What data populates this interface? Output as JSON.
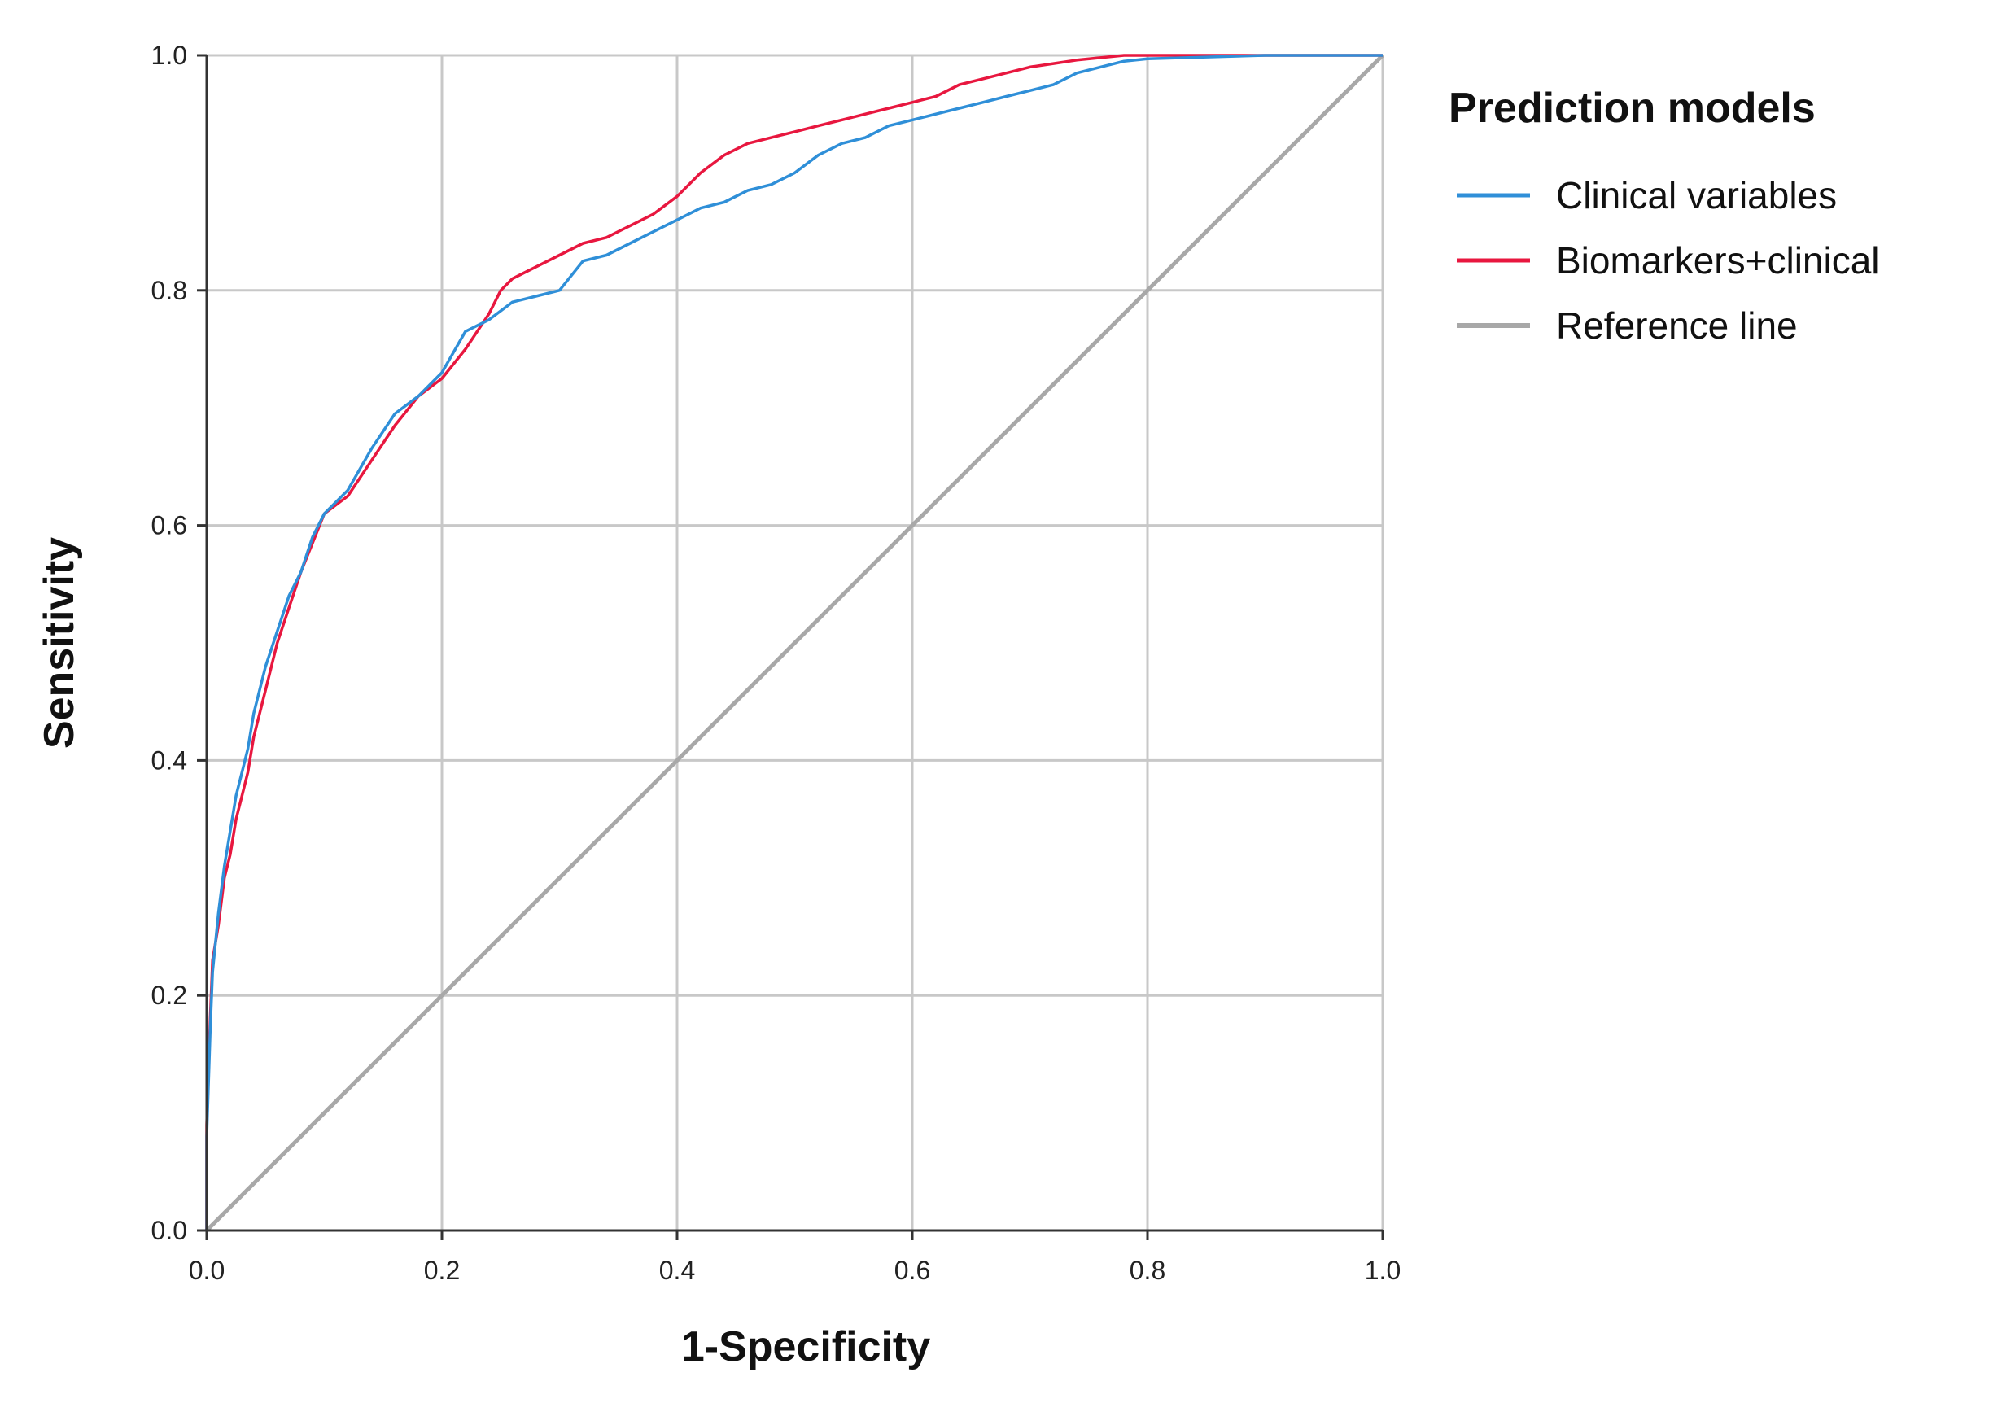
{
  "chart_data": {
    "type": "line",
    "xlabel": "1-Specificity",
    "ylabel": "Sensitivity",
    "xlim": [
      0.0,
      1.0
    ],
    "ylim": [
      0.0,
      1.0
    ],
    "xticks": [
      "0.0",
      "0.2",
      "0.4",
      "0.6",
      "0.8",
      "1.0"
    ],
    "yticks": [
      "0.0",
      "0.2",
      "0.4",
      "0.6",
      "0.8",
      "1.0"
    ],
    "grid": true,
    "legend": {
      "title": "Prediction models",
      "placement": "top-right-outside"
    },
    "series": [
      {
        "name": "Clinical variables",
        "color": "#2f8fd8",
        "x": [
          0.0,
          0.0,
          0.003,
          0.005,
          0.01,
          0.015,
          0.02,
          0.025,
          0.03,
          0.035,
          0.04,
          0.05,
          0.06,
          0.07,
          0.08,
          0.09,
          0.1,
          0.12,
          0.14,
          0.16,
          0.18,
          0.2,
          0.22,
          0.24,
          0.26,
          0.28,
          0.3,
          0.32,
          0.34,
          0.36,
          0.38,
          0.4,
          0.42,
          0.44,
          0.46,
          0.48,
          0.5,
          0.52,
          0.54,
          0.56,
          0.58,
          0.6,
          0.62,
          0.64,
          0.66,
          0.68,
          0.7,
          0.72,
          0.74,
          0.76,
          0.78,
          0.8,
          0.9,
          1.0
        ],
        "y": [
          0.0,
          0.08,
          0.17,
          0.22,
          0.27,
          0.31,
          0.34,
          0.37,
          0.39,
          0.41,
          0.44,
          0.48,
          0.51,
          0.54,
          0.56,
          0.59,
          0.61,
          0.63,
          0.665,
          0.695,
          0.71,
          0.73,
          0.765,
          0.775,
          0.79,
          0.795,
          0.8,
          0.825,
          0.83,
          0.84,
          0.85,
          0.86,
          0.87,
          0.875,
          0.885,
          0.89,
          0.9,
          0.915,
          0.925,
          0.93,
          0.94,
          0.945,
          0.95,
          0.955,
          0.96,
          0.965,
          0.97,
          0.975,
          0.985,
          0.99,
          0.995,
          0.997,
          1.0,
          1.0
        ]
      },
      {
        "name": "Biomarkers+clinical",
        "color": "#e8173f",
        "x": [
          0.0,
          0.0,
          0.003,
          0.005,
          0.01,
          0.015,
          0.02,
          0.025,
          0.03,
          0.035,
          0.04,
          0.05,
          0.06,
          0.07,
          0.08,
          0.09,
          0.1,
          0.12,
          0.14,
          0.16,
          0.18,
          0.2,
          0.22,
          0.24,
          0.25,
          0.26,
          0.28,
          0.3,
          0.32,
          0.34,
          0.36,
          0.38,
          0.4,
          0.42,
          0.44,
          0.46,
          0.48,
          0.5,
          0.52,
          0.54,
          0.56,
          0.58,
          0.6,
          0.62,
          0.64,
          0.66,
          0.68,
          0.7,
          0.72,
          0.74,
          0.76,
          0.78,
          0.8,
          0.9,
          1.0
        ],
        "y": [
          0.0,
          0.09,
          0.18,
          0.23,
          0.26,
          0.3,
          0.32,
          0.35,
          0.37,
          0.39,
          0.42,
          0.46,
          0.5,
          0.53,
          0.56,
          0.585,
          0.61,
          0.625,
          0.655,
          0.685,
          0.71,
          0.725,
          0.75,
          0.78,
          0.8,
          0.81,
          0.82,
          0.83,
          0.84,
          0.845,
          0.855,
          0.865,
          0.88,
          0.9,
          0.915,
          0.925,
          0.93,
          0.935,
          0.94,
          0.945,
          0.95,
          0.955,
          0.96,
          0.965,
          0.975,
          0.98,
          0.985,
          0.99,
          0.993,
          0.996,
          0.998,
          1.0,
          1.0,
          1.0,
          1.0
        ]
      },
      {
        "name": "Reference line",
        "color": "#a8a8a8",
        "x": [
          0.0,
          1.0
        ],
        "y": [
          0.0,
          1.0
        ]
      }
    ]
  },
  "colors": {
    "grid": "#c8c8c8",
    "axis": "#333333",
    "background": "#ffffff"
  }
}
